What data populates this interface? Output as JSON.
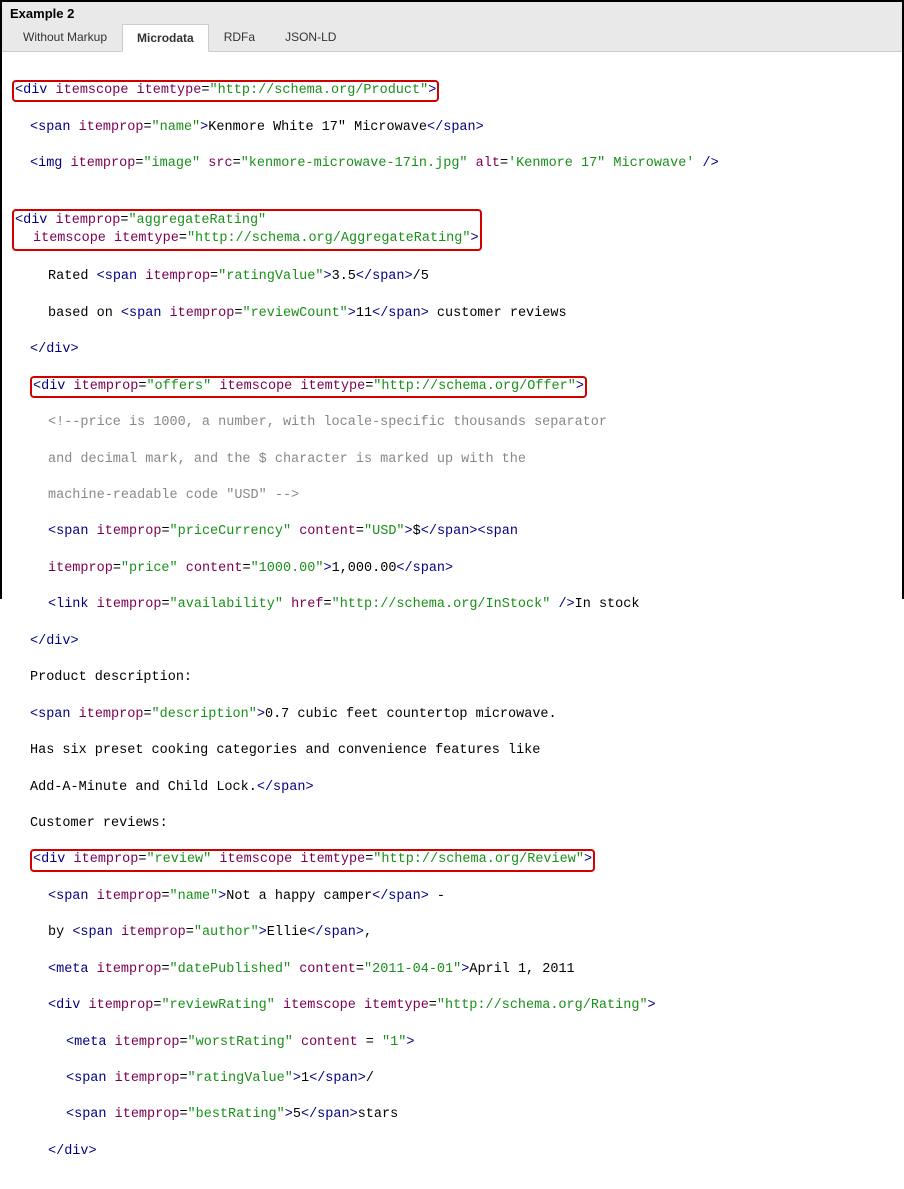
{
  "header": {
    "title": "Example 2"
  },
  "tabs": {
    "t0": "Without Markup",
    "t1": "Microdata",
    "t2": "RDFa",
    "t3": "JSON-LD",
    "activeIndex": 1
  },
  "colors": {
    "highlight_border": "#d40000",
    "tag_color": "#000080",
    "attr_color": "#7b0052",
    "value_color": "#1a8f1a",
    "header_bg": "#e9e9e9"
  },
  "code": {
    "l1_open_lt": "<",
    "l1_div": "div",
    "l1_itemscope": " itemscope ",
    "l1_itemtype_attr": "itemtype",
    "l1_eq": "=",
    "l1_itemtype_val": "\"http://schema.org/Product\"",
    "l1_gt": ">",
    "l2a": "<",
    "l2_span": "span ",
    "l2_itemprop": "itemprop",
    "l2_eq": "=",
    "l2_val": "\"name\"",
    "l2_gt": ">",
    "l2_text": "Kenmore White 17\" Microwave",
    "l2_close": "</span>",
    "l3a": "<",
    "l3_img": "img ",
    "l3_ip": "itemprop",
    "l3_eq1": "=",
    "l3_ipv": "\"image\"",
    "l3_sp1": " ",
    "l3_src": "src",
    "l3_eq2": "=",
    "l3_srcv": "\"kenmore-microwave-17in.jpg\"",
    "l3_sp2": " ",
    "l3_alt": "alt",
    "l3_eq3": "=",
    "l3_altv": "'Kenmore 17\" Microwave'",
    "l3_end": " />",
    "l4a": "<",
    "l4_div": "div ",
    "l4_ip": "itemprop",
    "l4_eq": "=",
    "l4_ipv": "\"aggregateRating\"",
    "l5_is": "itemscope ",
    "l5_it": "itemtype",
    "l5_eq": "=",
    "l5_itv": "\"http://schema.org/AggregateRating\"",
    "l5_gt": ">",
    "l6_pre": "Rated ",
    "l6a": "<",
    "l6_span": "span ",
    "l6_ip": "itemprop",
    "l6_eq": "=",
    "l6_ipv": "\"ratingValue\"",
    "l6_gt": ">",
    "l6_text": "3.5",
    "l6_close": "</span>",
    "l6_post": "/5",
    "l7_pre": "based on ",
    "l7a": "<",
    "l7_span": "span ",
    "l7_ip": "itemprop",
    "l7_eq": "=",
    "l7_ipv": "\"reviewCount\"",
    "l7_gt": ">",
    "l7_text": "11",
    "l7_close": "</span>",
    "l7_post": " customer reviews",
    "l8": "</div>",
    "l9a": "<",
    "l9_div": "div ",
    "l9_ip": "itemprop",
    "l9_eq": "=",
    "l9_ipv": "\"offers\"",
    "l9_sp": " ",
    "l9_is": "itemscope ",
    "l9_it": "itemtype",
    "l9_eq2": "=",
    "l9_itv": "\"http://schema.org/Offer\"",
    "l9_gt": ">",
    "l10a": "<!--price is 1000, a number, with locale-specific thousands separator",
    "l10b": "and decimal mark, and the $ character is marked up with the",
    "l10c": "machine-readable code \"USD\" -->",
    "l11a": "<",
    "l11_span": "span ",
    "l11_ip": "itemprop",
    "l11_eq": "=",
    "l11_ipv": "\"priceCurrency\"",
    "l11_sp": " ",
    "l11_c": "content",
    "l11_eq2": "=",
    "l11_cv": "\"USD\"",
    "l11_gt": ">",
    "l11_text": "$",
    "l11_close": "</span>",
    "l11b_a": "<",
    "l11b_span": "span",
    "l12_ip": "itemprop",
    "l12_eq": "=",
    "l12_ipv": "\"price\"",
    "l12_sp": " ",
    "l12_c": "content",
    "l12_eq2": "=",
    "l12_cv": "\"1000.00\"",
    "l12_gt": ">",
    "l12_text": "1,000.00",
    "l12_close": "</span>",
    "l13a": "<",
    "l13_link": "link ",
    "l13_ip": "itemprop",
    "l13_eq": "=",
    "l13_ipv": "\"availability\"",
    "l13_sp": " ",
    "l13_href": "href",
    "l13_eq2": "=",
    "l13_hrefv": "\"http://schema.org/InStock\"",
    "l13_end": " />",
    "l13_text": "In stock",
    "l14": "</div>",
    "l15": "Product description:",
    "l16a": "<",
    "l16_span": "span ",
    "l16_ip": "itemprop",
    "l16_eq": "=",
    "l16_ipv": "\"description\"",
    "l16_gt": ">",
    "l16_text": "0.7 cubic feet countertop microwave.",
    "l17": "Has six preset cooking categories and convenience features like",
    "l18_text": "Add-A-Minute and Child Lock.",
    "l18_close": "</span>",
    "l19": "Customer reviews:",
    "l20a": "<",
    "l20_div": "div ",
    "l20_ip": "itemprop",
    "l20_eq": "=",
    "l20_ipv": "\"review\"",
    "l20_sp": " ",
    "l20_is": "itemscope ",
    "l20_it": "itemtype",
    "l20_eq2": "=",
    "l20_itv": "\"http://schema.org/Review\"",
    "l20_gt": ">",
    "l21a": "<",
    "l21_span": "span ",
    "l21_ip": "itemprop",
    "l21_eq": "=",
    "l21_ipv": "\"name\"",
    "l21_gt": ">",
    "l21_text": "Not a happy camper",
    "l21_close": "</span>",
    "l21_post": " -",
    "l22_pre": "by ",
    "l22a": "<",
    "l22_span": "span ",
    "l22_ip": "itemprop",
    "l22_eq": "=",
    "l22_ipv": "\"author\"",
    "l22_gt": ">",
    "l22_text": "Ellie",
    "l22_close": "</span>",
    "l22_post": ",",
    "l23a": "<",
    "l23_meta": "meta ",
    "l23_ip": "itemprop",
    "l23_eq": "=",
    "l23_ipv": "\"datePublished\"",
    "l23_sp": " ",
    "l23_c": "content",
    "l23_eq2": "=",
    "l23_cv": "\"2011-04-01\"",
    "l23_gt": ">",
    "l23_text": "April 1, 2011",
    "l24a": "<",
    "l24_div": "div ",
    "l24_ip": "itemprop",
    "l24_eq": "=",
    "l24_ipv": "\"reviewRating\"",
    "l24_sp": " ",
    "l24_is": "itemscope ",
    "l24_it": "itemtype",
    "l24_eq2": "=",
    "l24_itv": "\"http://schema.org/Rating\"",
    "l24_gt": ">",
    "l25a": "<",
    "l25_meta": "meta ",
    "l25_ip": "itemprop",
    "l25_eq": "=",
    "l25_ipv": "\"worstRating\"",
    "l25_sp": " ",
    "l25_c": "content",
    "l25_eq2": " = ",
    "l25_cv": "\"1\"",
    "l25_gt": ">",
    "l26a": "<",
    "l26_span": "span ",
    "l26_ip": "itemprop",
    "l26_eq": "=",
    "l26_ipv": "\"ratingValue\"",
    "l26_gt": ">",
    "l26_text": "1",
    "l26_close": "</span>",
    "l26_post": "/",
    "l27a": "<",
    "l27_span": "span ",
    "l27_ip": "itemprop",
    "l27_eq": "=",
    "l27_ipv": "\"bestRating\"",
    "l27_gt": ">",
    "l27_text": "5",
    "l27_close": "</span>",
    "l27_post": "stars",
    "l28": "</div>"
  }
}
